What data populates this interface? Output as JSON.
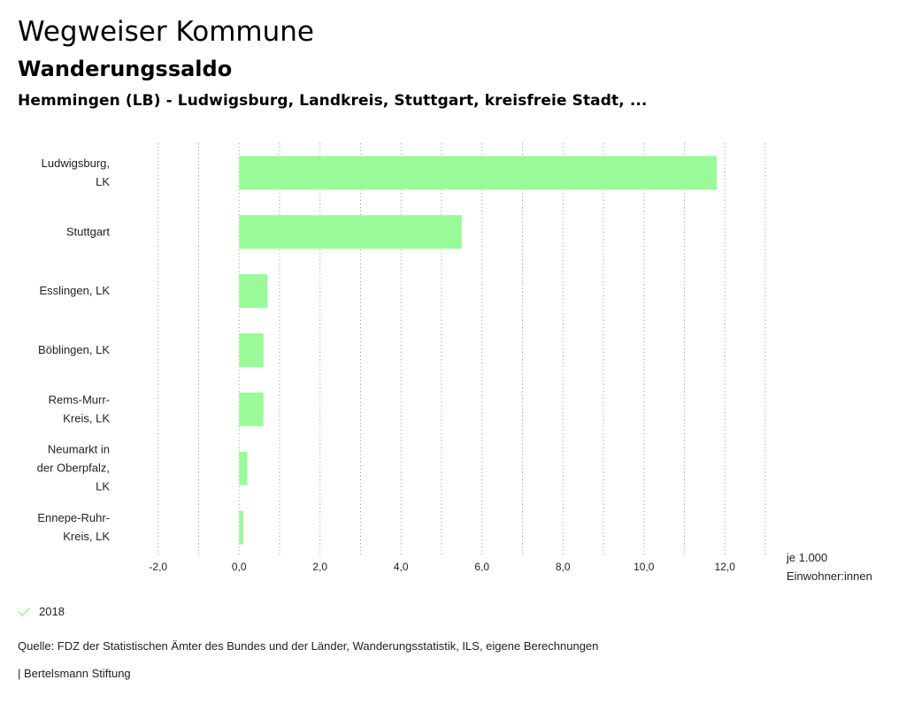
{
  "header": {
    "title": "Wegweiser Kommune",
    "subtitle": "Wanderungssaldo",
    "regions": "Hemmingen (LB) - Ludwigsburg, Landkreis, Stuttgart, kreisfreie Stadt, ..."
  },
  "chart_data": {
    "type": "bar",
    "orientation": "horizontal",
    "categories": [
      [
        "Ludwigsburg,",
        "LK"
      ],
      [
        "Stuttgart"
      ],
      [
        "Esslingen, LK"
      ],
      [
        "Böblingen, LK"
      ],
      [
        "Rems-Murr-",
        "Kreis, LK"
      ],
      [
        "Neumarkt in",
        "der Oberpfalz,",
        "LK"
      ],
      [
        "Ennepe-Ruhr-",
        "Kreis, LK"
      ]
    ],
    "series": [
      {
        "name": "2018",
        "values": [
          11.8,
          5.5,
          0.7,
          0.6,
          0.6,
          0.2,
          0.1
        ]
      }
    ],
    "xlim": [
      -3.0,
      13.0
    ],
    "xticks": [
      -2,
      0,
      2,
      4,
      6,
      8,
      10,
      12
    ],
    "xtick_labels": [
      "-2,0",
      "0,0",
      "2,0",
      "4,0",
      "6,0",
      "8,0",
      "10,0",
      "12,0"
    ],
    "unit_label": [
      "je 1.000",
      "Einwohner:innen"
    ],
    "grid": "vertical-dotted",
    "bar_color": "#98fb98"
  },
  "legend": {
    "label": "2018",
    "color": "#98fb98"
  },
  "footer": {
    "source": "Quelle: FDZ der Statistischen Ämter des Bundes und der Länder, Wanderungsstatistik, ILS, eigene Berechnungen",
    "credit": "| Bertelsmann Stiftung"
  }
}
